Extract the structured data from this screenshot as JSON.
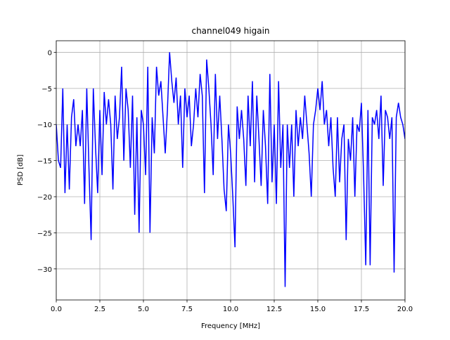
{
  "chart_data": {
    "type": "line",
    "title": "channel049 higain",
    "xlabel": "Frequency [MHz]",
    "ylabel": "PSD [dB]",
    "series": [
      {
        "name": "PSD",
        "color": "#0000ff",
        "x": [
          0,
          0.125,
          0.25,
          0.375,
          0.5,
          0.625,
          0.75,
          0.875,
          1,
          1.125,
          1.25,
          1.375,
          1.5,
          1.625,
          1.75,
          1.875,
          2,
          2.125,
          2.25,
          2.375,
          2.5,
          2.625,
          2.75,
          2.875,
          3,
          3.125,
          3.25,
          3.375,
          3.5,
          3.625,
          3.75,
          3.875,
          4,
          4.125,
          4.25,
          4.375,
          4.5,
          4.625,
          4.75,
          4.875,
          5,
          5.125,
          5.25,
          5.375,
          5.5,
          5.625,
          5.75,
          5.875,
          6,
          6.125,
          6.25,
          6.375,
          6.5,
          6.625,
          6.75,
          6.875,
          7,
          7.125,
          7.25,
          7.375,
          7.5,
          7.625,
          7.75,
          7.875,
          8,
          8.125,
          8.25,
          8.375,
          8.5,
          8.625,
          8.75,
          8.875,
          9,
          9.125,
          9.25,
          9.375,
          9.5,
          9.625,
          9.75,
          9.875,
          10,
          10.125,
          10.25,
          10.375,
          10.5,
          10.625,
          10.75,
          10.875,
          11,
          11.125,
          11.25,
          11.375,
          11.5,
          11.625,
          11.75,
          11.875,
          12,
          12.125,
          12.25,
          12.375,
          12.5,
          12.625,
          12.75,
          12.875,
          13,
          13.125,
          13.25,
          13.375,
          13.5,
          13.625,
          13.75,
          13.875,
          14,
          14.125,
          14.25,
          14.375,
          14.5,
          14.625,
          14.75,
          14.875,
          15,
          15.125,
          15.25,
          15.375,
          15.5,
          15.625,
          15.75,
          15.875,
          16,
          16.125,
          16.25,
          16.375,
          16.5,
          16.625,
          16.75,
          16.875,
          17,
          17.125,
          17.25,
          17.375,
          17.5,
          17.625,
          17.75,
          17.875,
          18,
          18.125,
          18.25,
          18.375,
          18.5,
          18.625,
          18.75,
          18.875,
          19,
          19.125,
          19.25,
          19.375,
          19.5,
          19.625,
          19.75,
          19.875,
          20
        ],
        "values": [
          -10,
          -15,
          -16,
          -5,
          -19.5,
          -10,
          -19,
          -9,
          -6.5,
          -13,
          -10,
          -13,
          -8,
          -21,
          -5,
          -16,
          -26,
          -5,
          -13,
          -19.5,
          -8,
          -17,
          -5.5,
          -10,
          -6.5,
          -10,
          -19,
          -6,
          -12,
          -9,
          -2,
          -15,
          -5,
          -8,
          -16,
          -6,
          -22.5,
          -9,
          -25,
          -8,
          -10,
          -17,
          -2,
          -25,
          -9,
          -14,
          -2,
          -6,
          -4,
          -9,
          -14,
          -8,
          0,
          -4,
          -7,
          -3.5,
          -10,
          -6,
          -16,
          -5,
          -9,
          -6,
          -13,
          -10,
          -5,
          -9,
          -3,
          -6,
          -19.5,
          -1,
          -5,
          -10,
          -17,
          -3,
          -12,
          -6,
          -12,
          -19,
          -22,
          -10,
          -14,
          -20,
          -27,
          -7.5,
          -12,
          -8,
          -12,
          -18.5,
          -6,
          -13,
          -4,
          -18,
          -6,
          -12,
          -18.5,
          -8,
          -13,
          -21,
          -3,
          -18,
          -10,
          -21,
          -4,
          -16,
          -10,
          -32.5,
          -10,
          -16,
          -10,
          -20,
          -8,
          -13,
          -9,
          -12,
          -6,
          -10,
          -14,
          -20,
          -10,
          -8,
          -5,
          -8,
          -4,
          -10,
          -8,
          -13,
          -9,
          -16,
          -20,
          -9,
          -18,
          -12,
          -10,
          -26,
          -12,
          -15,
          -9,
          -20,
          -10,
          -11,
          -7,
          -17,
          -29.5,
          -8,
          -29.5,
          -9,
          -10,
          -8,
          -12,
          -6,
          -18.5,
          -8,
          -9,
          -12,
          -9,
          -30.5,
          -9,
          -7,
          -9,
          -10,
          -12
        ]
      }
    ],
    "xlim": [
      0,
      20
    ],
    "ylim": [
      -34.3,
      1.6
    ],
    "xticks": [
      {
        "value": 0,
        "label": "0.0"
      },
      2.5,
      {
        "value": 5,
        "label": "5.0"
      },
      7.5,
      {
        "value": 10,
        "label": "10.0"
      },
      12.5,
      {
        "value": 15,
        "label": "15.0"
      },
      17.5,
      {
        "value": 20,
        "label": "20.0"
      }
    ],
    "yticks": [
      {
        "value": -30,
        "label": "−30"
      },
      {
        "value": -25,
        "label": "−25"
      },
      {
        "value": -20,
        "label": "−20"
      },
      {
        "value": -15,
        "label": "−15"
      },
      {
        "value": -10,
        "label": "−10"
      },
      {
        "value": -5,
        "label": "−5"
      },
      0
    ],
    "grid": true
  }
}
